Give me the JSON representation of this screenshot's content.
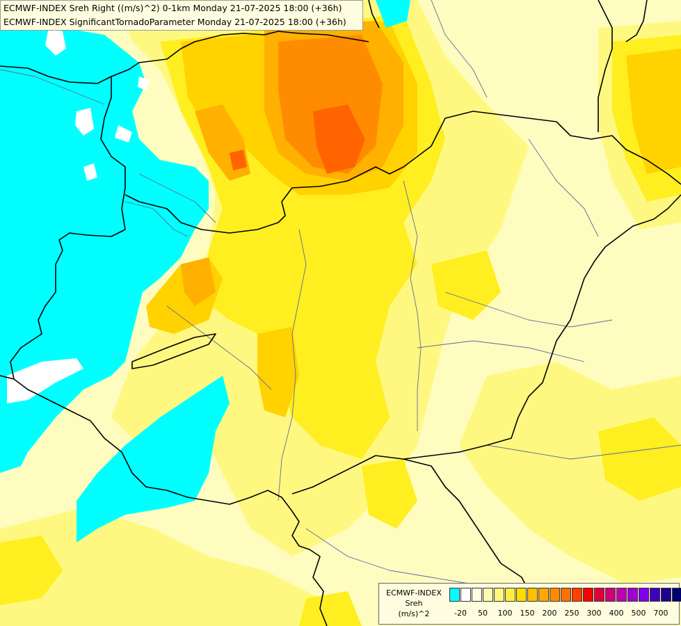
{
  "header": {
    "line1": "ECMWF-INDEX Sreh Right ((m/s)^2) 0-1km Monday 21-07-2025 18:00 (+36h)",
    "line2": "ECMWF-INDEX SignificantTornadoParameter Monday 21-07-2025 18:00 (+36h)"
  },
  "legend": {
    "title_line1": "ECMWF-INDEX",
    "title_line2": "Sreh",
    "title_line3": "(m/s)^2",
    "colors": [
      "#00ffff",
      "#ffffff",
      "#fffde0",
      "#fffbb0",
      "#fff780",
      "#ffee40",
      "#ffdd00",
      "#ffc000",
      "#ffa800",
      "#ff8c00",
      "#ff7000",
      "#ff4000",
      "#ff0000",
      "#e0003c",
      "#d0007a",
      "#c000b0",
      "#a000d0",
      "#8000f0",
      "#4000c0",
      "#200090",
      "#000070"
    ],
    "ticks": [
      "-20",
      "50",
      "100",
      "150",
      "200",
      "250",
      "300",
      "400",
      "500",
      "700"
    ],
    "colors_meaning": "sreh_colorscale"
  },
  "map": {
    "palette": {
      "cyan": "#00ffff",
      "white": "#ffffff",
      "pale": "#fffcc0",
      "light_yellow": "#fff880",
      "yellow": "#ffee20",
      "gold": "#ffd200",
      "amber": "#ffb000",
      "orange": "#ff8c00",
      "dark_orange": "#ff6400",
      "border": "#000000",
      "river": "#5f6a9a"
    }
  }
}
